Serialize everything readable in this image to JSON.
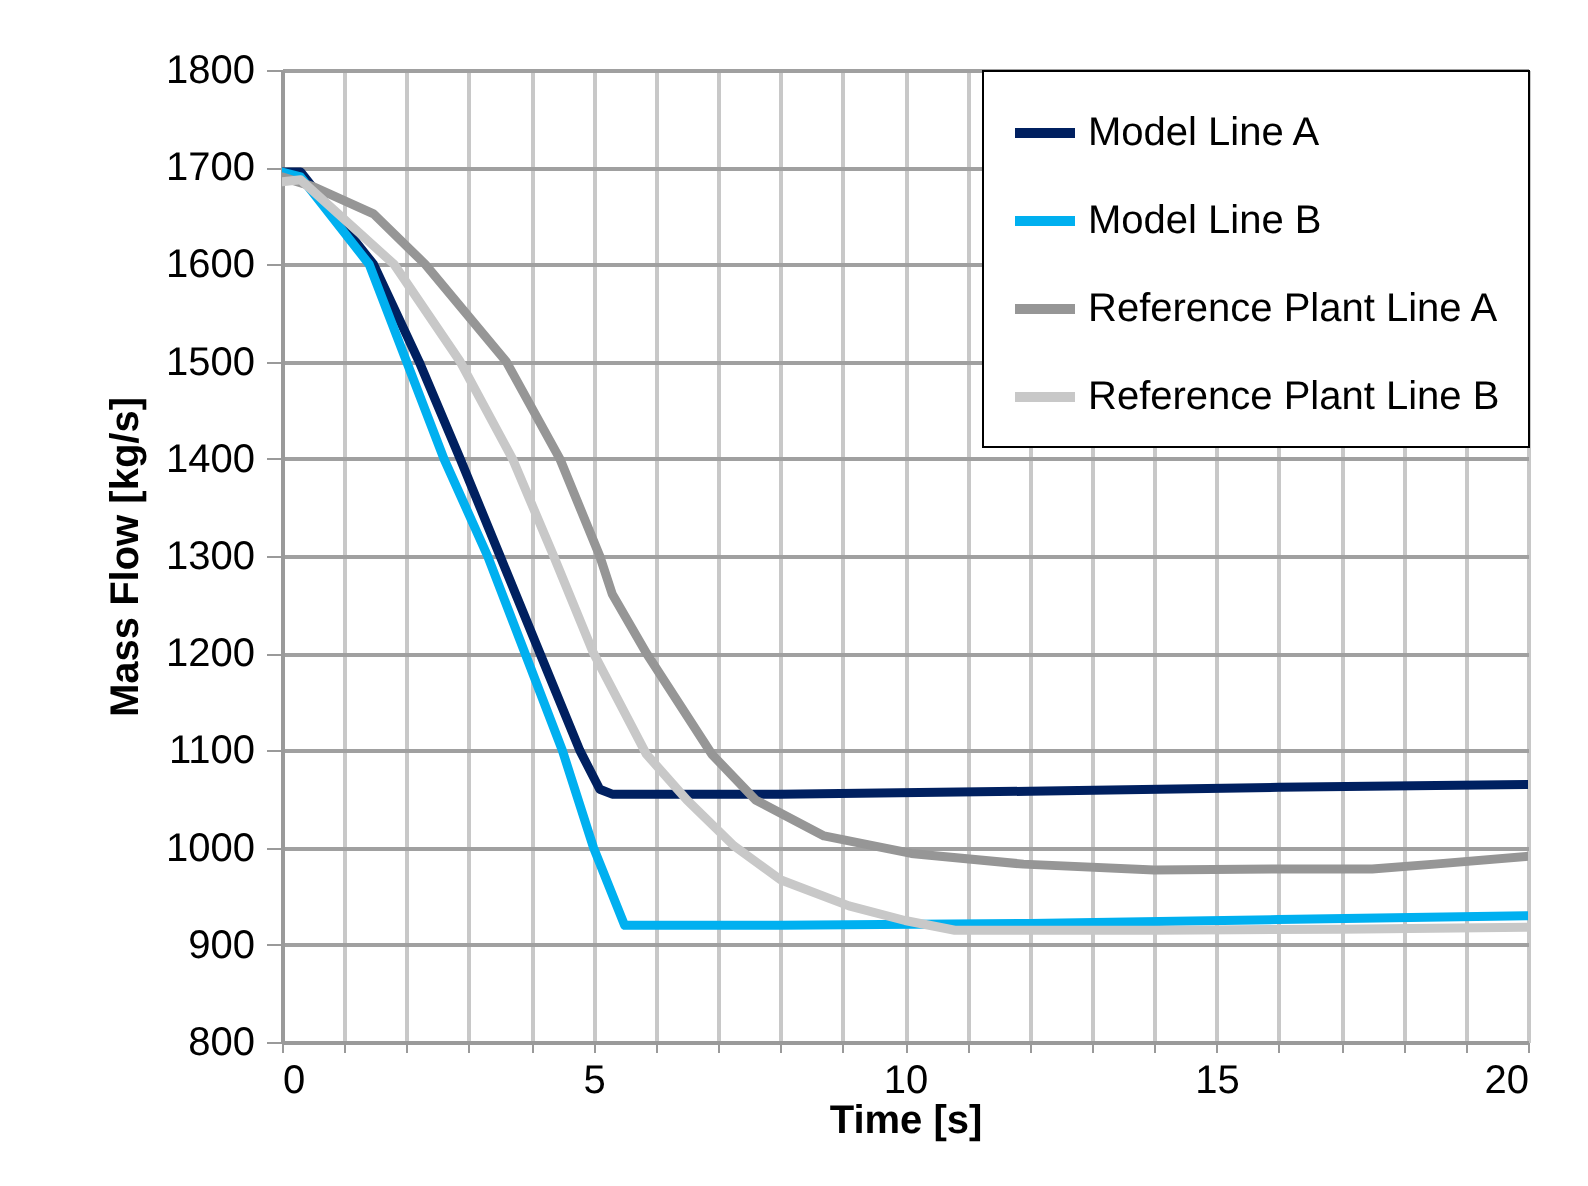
{
  "chart_data": {
    "type": "line",
    "xlabel": "Time [s]",
    "ylabel": "Mass Flow [kg/s]",
    "xlim": [
      0,
      20
    ],
    "ylim": [
      800,
      1800
    ],
    "xticks": [
      0,
      {
        "value": 1,
        "label": null
      },
      {
        "value": 2,
        "label": null
      },
      {
        "value": 3,
        "label": null
      },
      {
        "value": 4,
        "label": null
      },
      5,
      {
        "value": 6,
        "label": null
      },
      {
        "value": 7,
        "label": null
      },
      {
        "value": 8,
        "label": null
      },
      {
        "value": 9,
        "label": null
      },
      10,
      {
        "value": 11,
        "label": null
      },
      {
        "value": 12,
        "label": null
      },
      {
        "value": 13,
        "label": null
      },
      {
        "value": 14,
        "label": null
      },
      15,
      {
        "value": 16,
        "label": null
      },
      {
        "value": 17,
        "label": null
      },
      {
        "value": 18,
        "label": null
      },
      {
        "value": 19,
        "label": null
      },
      20
    ],
    "yticks": [
      800,
      900,
      1000,
      1100,
      1200,
      1300,
      1400,
      1500,
      1600,
      1700,
      1800
    ],
    "grid": true,
    "legend": "top right",
    "line_style": "solid",
    "marker": "none",
    "series": [
      {
        "name": "Model Line A",
        "color": "#002060",
        "x": [
          0,
          0.3,
          1.47,
          2.2,
          2.86,
          3.5,
          4.14,
          4.78,
          5.1,
          5.3,
          8,
          12,
          16,
          20
        ],
        "values": [
          1695,
          1695,
          1600,
          1500,
          1400,
          1300,
          1200,
          1100,
          1060,
          1055,
          1055,
          1058,
          1062,
          1065
        ]
      },
      {
        "name": "Model Line B",
        "color": "#00b0f0",
        "x": [
          0,
          0.3,
          1.4,
          2.0,
          2.6,
          3.3,
          3.9,
          4.5,
          5.0,
          5.5,
          8,
          12,
          16,
          20
        ],
        "values": [
          1695,
          1690,
          1600,
          1500,
          1400,
          1300,
          1200,
          1100,
          1000,
          920,
          920,
          922,
          926,
          930
        ]
      },
      {
        "name": "Reference Plant Line A",
        "color": "#969696",
        "x": [
          0,
          0.5,
          1.47,
          2.3,
          3.6,
          4.46,
          5.1,
          5.3,
          5.85,
          6.9,
          7.6,
          8.7,
          10.1,
          11.9,
          14,
          16,
          17.5,
          18.5,
          20
        ],
        "values": [
          1690,
          1680,
          1652,
          1600,
          1500,
          1400,
          1300,
          1261,
          1200,
          1096,
          1049,
          1012,
          994,
          983,
          977,
          978,
          978,
          983,
          991
        ]
      },
      {
        "name": "Reference Plant Line B",
        "color": "#c8c8c8",
        "x": [
          0,
          0.3,
          1.8,
          2.86,
          3.7,
          4.36,
          5.0,
          5.85,
          6.5,
          7.25,
          8.0,
          9.1,
          10.0,
          10.8,
          14,
          17,
          20
        ],
        "values": [
          1685,
          1687,
          1600,
          1500,
          1400,
          1300,
          1200,
          1096,
          1049,
          1002,
          967,
          940,
          925,
          915,
          915,
          916,
          918
        ]
      }
    ]
  }
}
